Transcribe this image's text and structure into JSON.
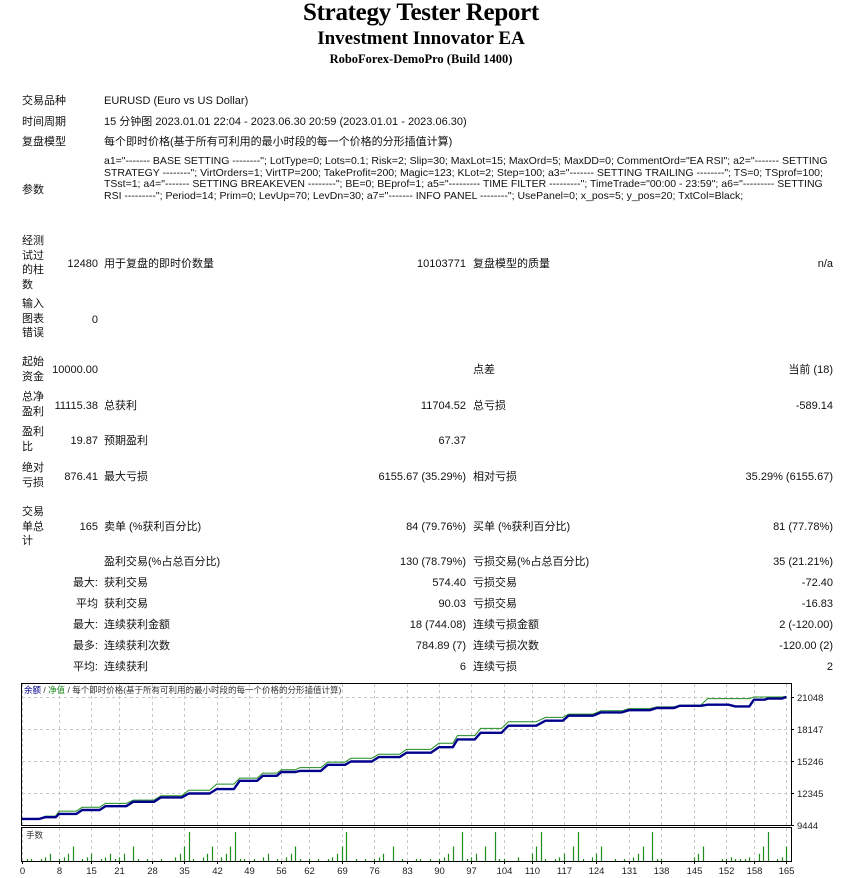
{
  "header": {
    "title": "Strategy Tester Report",
    "ea_name": "Investment Innovator EA",
    "server": "RoboForex-DemoPro (Build 1400)"
  },
  "settings": {
    "symbol_label": "交易品种",
    "symbol_value": "EURUSD (Euro vs US Dollar)",
    "period_label": "时间周期",
    "period_value": "15 分钟图 2023.01.01 22:04 - 2023.06.30 20:59 (2023.01.01 - 2023.06.30)",
    "model_label": "复盘模型",
    "model_value": "每个即时价格(基于所有可利用的最小时段的每一个价格的分形插值计算)",
    "params_label": "参数",
    "params_value": "a1=\"------- BASE SETTING --------\"; LotType=0; Lots=0.1; Risk=2; Slip=30; MaxLot=15; MaxOrd=5; MaxDD=0; CommentOrd=\"EA RSI\"; a2=\"------- SETTING STRATEGY --------\"; VirtOrders=1; VirtTP=200; TakeProfit=200; Magic=123; KLot=2; Step=100; a3=\"------- SETTING TRAILING --------\"; TS=0; TSprof=100; TSst=1; a4=\"------- SETTING BREAKEVEN --------\"; BE=0; BEprof=1; a5=\"--------- TIME FILTER ---------\"; TimeTrade=\"00:00 - 23:59\"; a6=\"--------- SETTING RSI ---------\"; Period=14; Prim=0; LevUp=70; LevDn=30; a7=\"------- INFO PANEL --------\"; UsePanel=0; x_pos=5; y_pos=20; TxtCol=Black;"
  },
  "stats": {
    "bars_label": "经测试过的柱数",
    "bars_value": "12480",
    "ticks_label": "用于复盘的即时价数量",
    "ticks_value": "10103771",
    "quality_label": "复盘模型的质量",
    "quality_value": "n/a",
    "errors_label": "输入图表错误",
    "errors_value": "0",
    "deposit_label": "起始资金",
    "deposit_value": "10000.00",
    "spread_label": "点差",
    "spread_value": "当前 (18)",
    "net_profit_label": "总净盈利",
    "net_profit_value": "11115.38",
    "gross_profit_label": "总获利",
    "gross_profit_value": "11704.52",
    "gross_loss_label": "总亏损",
    "gross_loss_value": "-589.14",
    "profit_factor_label": "盈利比",
    "profit_factor_value": "19.87",
    "expected_payoff_label": "预期盈利",
    "expected_payoff_value": "67.37",
    "abs_dd_label": "绝对亏损",
    "abs_dd_value": "876.41",
    "max_dd_label": "最大亏损",
    "max_dd_value": "6155.67 (35.29%)",
    "rel_dd_label": "相对亏损",
    "rel_dd_value": "35.29% (6155.67)",
    "total_trades_label": "交易单总计",
    "total_trades_value": "165",
    "short_label": "卖单 (%获利百分比)",
    "short_value": "84 (79.76%)",
    "long_label": "买单 (%获利百分比)",
    "long_value": "81 (77.78%)",
    "profit_trades_label": "盈利交易(%占总百分比)",
    "profit_trades_value": "130 (78.79%)",
    "loss_trades_label": "亏损交易(%占总百分比)",
    "loss_trades_value": "35 (21.21%)",
    "largest_prefix": "最大:",
    "largest_profit_label": "获利交易",
    "largest_profit_value": "574.40",
    "largest_loss_label": "亏损交易",
    "largest_loss_value": "-72.40",
    "average_prefix": "平均",
    "avg_profit_label": "获利交易",
    "avg_profit_value": "90.03",
    "avg_loss_label": "亏损交易",
    "avg_loss_value": "-16.83",
    "max_prefix": "最大:",
    "max_cons_wins_label": "连续获利金额",
    "max_cons_wins_value": "18 (744.08)",
    "max_cons_losses_label": "连续亏损金额",
    "max_cons_losses_value": "2 (-120.00)",
    "most_prefix": "最多:",
    "most_cons_profit_label": "连续获利次数",
    "most_cons_profit_value": "784.89 (7)",
    "most_cons_loss_label": "连续亏损次数",
    "most_cons_loss_value": "-120.00 (2)",
    "avg_prefix": "平均:",
    "avg_cons_wins_label": "连续获利",
    "avg_cons_wins_value": "6",
    "avg_cons_losses_label": "连续亏损",
    "avg_cons_losses_value": "2"
  },
  "chart_legend": {
    "balance": "余额",
    "sep1": " / ",
    "equity": "净值",
    "sep2": " / ",
    "model": "每个即时价格(基于所有可利用的最小时段的每一个价格的分形插值计算)",
    "lots_label": "手数"
  },
  "colors": {
    "balance": "#00008b",
    "equity": "#1e8c1e",
    "lots": "#1e8c1e",
    "grid": "#c8c8c8",
    "frame": "#000000"
  },
  "chart_data": {
    "type": "line",
    "title": "余额 / 净值 / 每个即时价格(基于所有可利用的最小时段的每一个价格的分形插值计算)",
    "xlabel": "",
    "ylabel": "",
    "x_ticks": [
      0,
      8,
      15,
      21,
      28,
      35,
      42,
      49,
      56,
      62,
      69,
      76,
      83,
      90,
      97,
      104,
      110,
      117,
      124,
      131,
      138,
      145,
      152,
      158,
      165
    ],
    "y_ticks": [
      9444,
      12345,
      15246,
      18147,
      21048
    ],
    "ylim": [
      9444,
      21048
    ],
    "xlim": [
      0,
      166
    ],
    "grid": true,
    "legend_position": "top-left",
    "series": [
      {
        "name": "余额",
        "x": [
          0,
          5,
          8,
          13,
          18,
          24,
          30,
          36,
          42,
          47,
          52,
          56,
          60,
          66,
          71,
          77,
          83,
          90,
          94,
          99,
          105,
          113,
          118,
          125,
          131,
          137,
          142,
          148,
          154,
          158,
          161,
          165
        ],
        "values": [
          10000,
          10150,
          10450,
          10800,
          11150,
          11550,
          11950,
          12300,
          12700,
          13450,
          13900,
          14250,
          14350,
          14900,
          15200,
          15600,
          16000,
          16500,
          17200,
          17800,
          18450,
          18900,
          19350,
          19650,
          19850,
          20050,
          20250,
          20350,
          20200,
          20800,
          20900,
          21048
        ]
      },
      {
        "name": "净值",
        "x": [
          0,
          5,
          8,
          13,
          18,
          24,
          30,
          36,
          42,
          47,
          52,
          56,
          60,
          66,
          71,
          77,
          83,
          90,
          94,
          99,
          105,
          113,
          118,
          125,
          131,
          137,
          142,
          148,
          154,
          158,
          161,
          165
        ],
        "values": [
          10000,
          10250,
          10700,
          11050,
          11400,
          11700,
          12100,
          12600,
          13150,
          13700,
          14150,
          14450,
          14650,
          15150,
          15500,
          15850,
          16300,
          16850,
          17550,
          18200,
          18800,
          19200,
          19500,
          19800,
          20000,
          20150,
          20300,
          20900,
          20900,
          21050,
          21050,
          21100
        ]
      },
      {
        "name": "手数",
        "type": "bar",
        "x": [
          1,
          2,
          4,
          5,
          6,
          8,
          9,
          10,
          11,
          13,
          14,
          15,
          17,
          18,
          19,
          20,
          21,
          22,
          24,
          25,
          27,
          30,
          33,
          34,
          35,
          36,
          37,
          39,
          40,
          41,
          43,
          44,
          45,
          46,
          47,
          48,
          50,
          52,
          53,
          55,
          57,
          58,
          59,
          60,
          62,
          64,
          66,
          67,
          68,
          69,
          70,
          72,
          74,
          76,
          77,
          78,
          80,
          82,
          85,
          86,
          88,
          90,
          91,
          92,
          93,
          95,
          96,
          97,
          98,
          100,
          102,
          103,
          104,
          107,
          110,
          111,
          112,
          113,
          115,
          116,
          117,
          119,
          120,
          121,
          123,
          124,
          125,
          128,
          130,
          132,
          133,
          134,
          136,
          137,
          138,
          145,
          146,
          147,
          151,
          152,
          153,
          154,
          155,
          156,
          157,
          159,
          160,
          161,
          163,
          164,
          165
        ],
        "values": [
          0.1,
          0.1,
          0.1,
          0.2,
          0.4,
          0.1,
          0.2,
          0.4,
          0.8,
          0.1,
          0.2,
          0.4,
          0.1,
          0.2,
          0.4,
          0.1,
          0.2,
          0.4,
          0.8,
          0.1,
          0.1,
          0.1,
          0.2,
          0.4,
          0.8,
          1.6,
          0.1,
          0.2,
          0.4,
          0.8,
          0.2,
          0.4,
          0.8,
          1.6,
          0.1,
          0.1,
          0.1,
          0.2,
          0.4,
          0.1,
          0.2,
          0.4,
          0.8,
          0.1,
          0.1,
          0.1,
          0.1,
          0.2,
          0.4,
          0.8,
          1.6,
          0.1,
          0.1,
          0.1,
          0.2,
          0.4,
          0.8,
          0.1,
          0.1,
          0.1,
          0.1,
          0.1,
          0.2,
          0.4,
          0.8,
          1.6,
          0.1,
          0.2,
          0.4,
          0.8,
          1.6,
          0.1,
          0.1,
          0.2,
          0.4,
          0.8,
          1.6,
          0.1,
          0.1,
          0.2,
          0.4,
          0.8,
          1.6,
          0.1,
          0.2,
          0.4,
          0.8,
          0.1,
          0.1,
          0.2,
          0.4,
          0.8,
          1.6,
          0.1,
          0.1,
          0.2,
          0.4,
          0.8,
          0.1,
          0.1,
          0.2,
          0.1,
          0.1,
          0.1,
          0.2,
          0.4,
          0.8,
          1.6,
          0.1,
          0.2,
          0.8
        ]
      }
    ]
  }
}
